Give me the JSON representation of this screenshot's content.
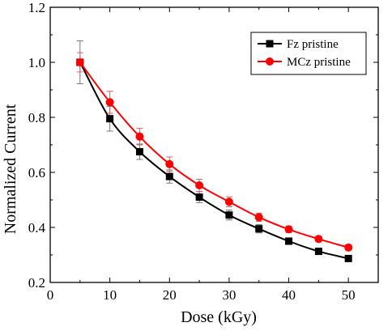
{
  "chart_data": {
    "type": "line",
    "title": "",
    "xlabel": "Dose (kGy)",
    "ylabel": "Normalized Current",
    "xlim": [
      0,
      55
    ],
    "ylim": [
      0.2,
      1.2
    ],
    "x_ticks": [
      0,
      10,
      20,
      30,
      40,
      50
    ],
    "x_tick_labels": [
      "0",
      "10",
      "20",
      "30",
      "40",
      "50"
    ],
    "y_ticks": [
      0.2,
      0.4,
      0.6,
      0.8,
      1.0,
      1.2
    ],
    "y_tick_labels": [
      "0.2",
      "0.4",
      "0.6",
      "0.8",
      "1.0",
      "1.2"
    ],
    "legend_position": "top-right",
    "x": [
      5,
      10,
      15,
      20,
      25,
      30,
      35,
      40,
      45,
      50
    ],
    "series": [
      {
        "name": "Fz pristine",
        "color": "#000000",
        "marker": "square",
        "values": [
          1.0,
          0.795,
          0.675,
          0.585,
          0.51,
          0.445,
          0.395,
          0.35,
          0.313,
          0.287
        ],
        "errors": [
          0.078,
          0.045,
          0.028,
          0.024,
          0.02,
          0.018,
          0.015,
          0.012,
          0.01,
          0.01
        ]
      },
      {
        "name": "MCz pristine",
        "color": "#ff0000",
        "marker": "circle",
        "values": [
          1.0,
          0.855,
          0.73,
          0.63,
          0.553,
          0.493,
          0.437,
          0.393,
          0.358,
          0.327
        ],
        "errors": [
          0.035,
          0.04,
          0.03,
          0.026,
          0.022,
          0.018,
          0.015,
          0.012,
          0.01,
          0.01
        ]
      }
    ]
  }
}
